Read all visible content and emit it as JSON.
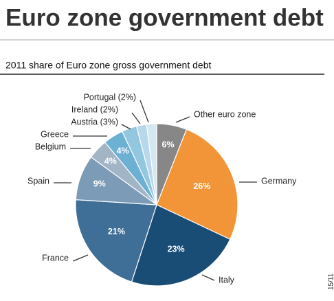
{
  "title": "Euro zone government debt",
  "chart_data": {
    "type": "pie",
    "subtitle": "2011 share of Euro zone gross government debt",
    "categories": [
      "Other euro zone",
      "Germany",
      "Italy",
      "France",
      "Spain",
      "Belgium",
      "Greece",
      "Austria (3%)",
      "Ireland (2%)",
      "Portugal (2%)"
    ],
    "values": [
      6,
      26,
      23,
      21,
      9,
      4,
      4,
      3,
      2,
      2
    ],
    "value_labels": [
      "6%",
      "26%",
      "23%",
      "21%",
      "9%",
      "4%",
      "4%",
      null,
      null,
      null
    ],
    "colors": [
      "#878787",
      "#f29538",
      "#1a4d76",
      "#3f6e96",
      "#7b9bb7",
      "#a2b5c7",
      "#6cb0d4",
      "#93c6df",
      "#b6d8ea",
      "#d3e8f2"
    ]
  },
  "note": "15/11"
}
